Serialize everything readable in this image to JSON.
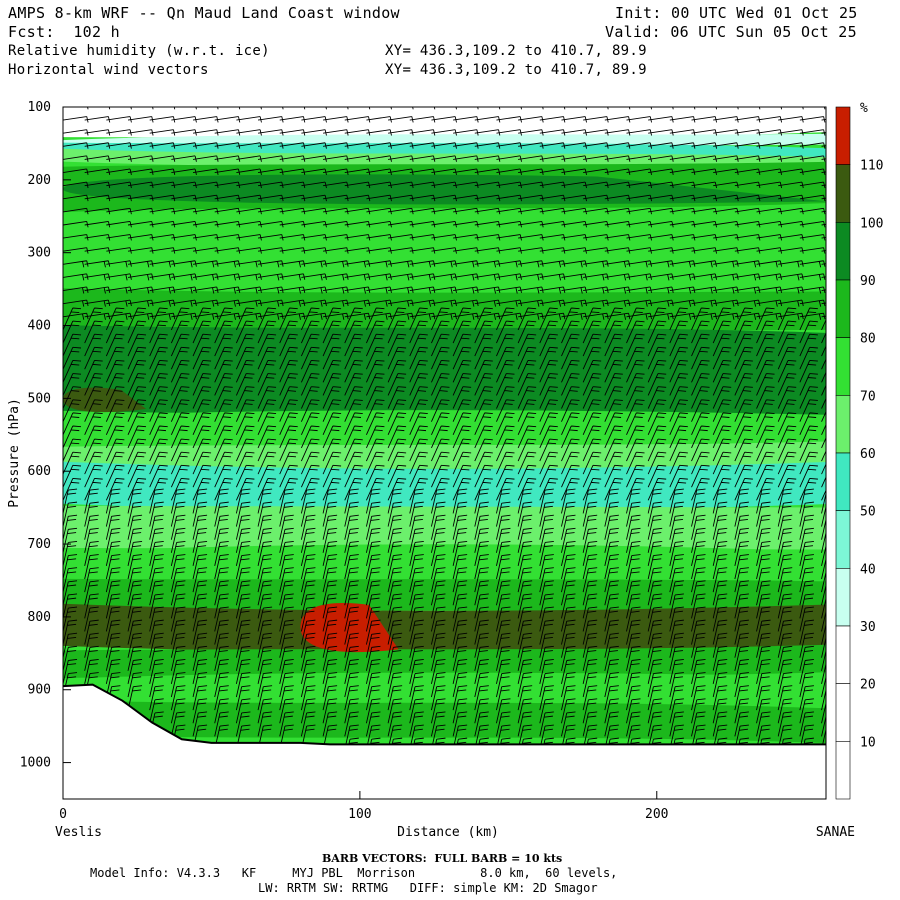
{
  "header": {
    "title": "AMPS 8-km WRF -- Qn Maud Land Coast window",
    "forecast": "Fcst:  102 h",
    "var1": "Relative humidity (w.r.t. ice)",
    "var2": "Horizontal wind vectors",
    "init": "Init: 00 UTC Wed 01 Oct 25",
    "valid": "Valid: 06 UTC Sun 05 Oct 25",
    "xy1": "XY= 436.3,109.2 to 410.7, 89.9",
    "xy2": "XY= 436.3,109.2 to 410.7, 89.9"
  },
  "footer": {
    "barb_note": "BARB VECTORS:  FULL BARB = 10 kts",
    "model_info": "Model Info: V4.3.3   KF     MYJ PBL  Morrison         8.0 km,  60 levels,",
    "model_info2": "LW: RRTM SW: RRTMG   DIFF: simple KM: 2D Smagor"
  },
  "chart_data": {
    "type": "heatmap",
    "title": "Relative humidity (w.r.t. ice) cross-section",
    "xlabel": "Distance (km)",
    "ylabel": "Pressure (hPa)",
    "x_range": [
      0,
      257
    ],
    "y_range": [
      100,
      1050
    ],
    "x_ticks": [
      0,
      100,
      200
    ],
    "y_ticks": [
      100,
      200,
      300,
      400,
      500,
      600,
      700,
      800,
      900,
      1000
    ],
    "left_label": "Veslis",
    "right_label": "SANAE",
    "colorbar": {
      "unit": "%",
      "levels": [
        10,
        20,
        30,
        40,
        50,
        60,
        70,
        80,
        90,
        100,
        110
      ],
      "colors": [
        "#ffffff",
        "#ffffff",
        "#ffffff",
        "#c8fff0",
        "#7df7d6",
        "#40e8c0",
        "#6cf06c",
        "#33e033",
        "#1cb81c",
        "#0c8a22",
        "#3b5a10",
        "#c81e00"
      ]
    },
    "rh_bands": [
      {
        "p_top": 100,
        "p_bot": 140,
        "value": 10
      },
      {
        "p_top": 140,
        "p_bot": 152,
        "value": 35
      },
      {
        "p_top": 152,
        "p_bot": 165,
        "value": 50
      },
      {
        "p_top": 165,
        "p_bot": 180,
        "value": 65
      },
      {
        "p_top": 180,
        "p_bot": 240,
        "value": 85
      },
      {
        "p_top": 240,
        "p_bot": 355,
        "value": 75
      },
      {
        "p_top": 355,
        "p_bot": 405,
        "value": 85
      },
      {
        "p_top": 405,
        "p_bot": 520,
        "value": 95
      },
      {
        "p_top": 520,
        "p_bot": 565,
        "value": 75
      },
      {
        "p_top": 565,
        "p_bot": 595,
        "value": 65
      },
      {
        "p_top": 595,
        "p_bot": 650,
        "value": 55
      },
      {
        "p_top": 650,
        "p_bot": 705,
        "value": 65
      },
      {
        "p_top": 705,
        "p_bot": 750,
        "value": 75
      },
      {
        "p_top": 750,
        "p_bot": 790,
        "value": 85
      },
      {
        "p_top": 790,
        "p_bot": 845,
        "value": 100
      },
      {
        "p_top": 845,
        "p_bot": 880,
        "value": 85
      },
      {
        "p_top": 880,
        "p_bot": 920,
        "value": 75
      },
      {
        "p_top": 920,
        "p_bot": 965,
        "value": 85
      }
    ],
    "features": [
      {
        "label": "red maximum",
        "value": 115,
        "x_km": [
          80,
          113
        ],
        "p": [
          778,
          850
        ]
      },
      {
        "label": "dark upper band",
        "value": 95,
        "x_km": [
          0,
          257
        ],
        "p": [
          190,
          235
        ]
      },
      {
        "label": "left 500 hPa pocket",
        "value": 105,
        "x_km": [
          0,
          28
        ],
        "p": [
          483,
          520
        ]
      }
    ],
    "terrain_pressure": [
      {
        "x_km": 0,
        "p": 895
      },
      {
        "x_km": 10,
        "p": 893
      },
      {
        "x_km": 20,
        "p": 915
      },
      {
        "x_km": 30,
        "p": 945
      },
      {
        "x_km": 40,
        "p": 968
      },
      {
        "x_km": 50,
        "p": 973
      },
      {
        "x_km": 80,
        "p": 973
      },
      {
        "x_km": 90,
        "p": 975
      },
      {
        "x_km": 200,
        "p": 975
      },
      {
        "x_km": 257,
        "p": 975
      }
    ]
  }
}
